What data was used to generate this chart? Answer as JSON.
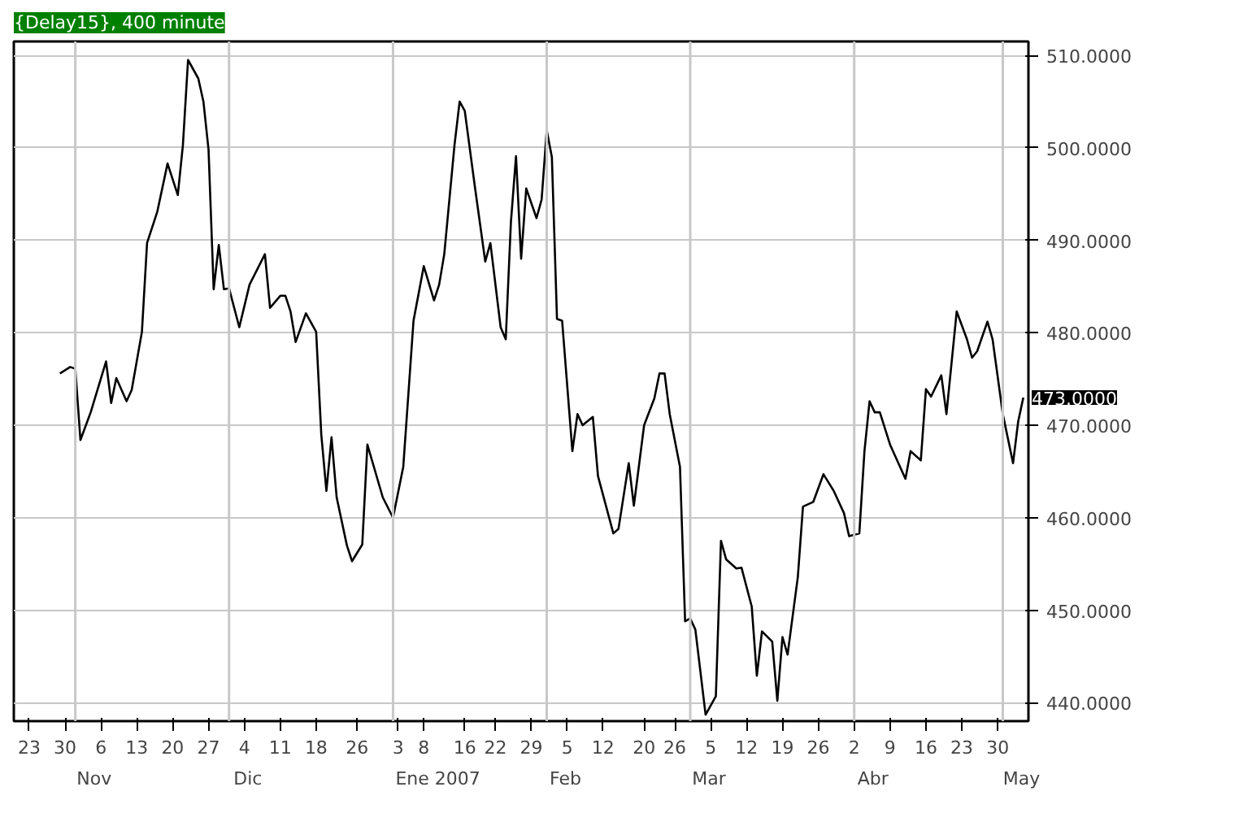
{
  "chart_data": {
    "type": "line",
    "title": "{Delay15}, 400 minute",
    "x": [
      "2006-10-29",
      "2006-10-31",
      "2006-11-01",
      "2006-11-02",
      "2006-11-04",
      "2006-11-07",
      "2006-11-08",
      "2006-11-09",
      "2006-11-11",
      "2006-11-12",
      "2006-11-14",
      "2006-11-15",
      "2006-11-17",
      "2006-11-19",
      "2006-11-21",
      "2006-11-22",
      "2006-11-23",
      "2006-11-25",
      "2006-11-26",
      "2006-11-27",
      "2006-11-28",
      "2006-11-29",
      "2006-11-30",
      "2006-12-01",
      "2006-12-03",
      "2006-12-05",
      "2006-12-08",
      "2006-12-09",
      "2006-12-11",
      "2006-12-12",
      "2006-12-13",
      "2006-12-14",
      "2006-12-16",
      "2006-12-18",
      "2006-12-19",
      "2006-12-20",
      "2006-12-21",
      "2006-12-22",
      "2006-12-24",
      "2006-12-25",
      "2006-12-27",
      "2006-12-28",
      "2006-12-31",
      "2007-01-02",
      "2007-01-04",
      "2007-01-06",
      "2007-01-08",
      "2007-01-10",
      "2007-01-11",
      "2007-01-12",
      "2007-01-14",
      "2007-01-15",
      "2007-01-16",
      "2007-01-18",
      "2007-01-20",
      "2007-01-21",
      "2007-01-23",
      "2007-01-24",
      "2007-01-25",
      "2007-01-26",
      "2007-01-27",
      "2007-01-28",
      "2007-01-30",
      "2007-01-31",
      "2007-02-01",
      "2007-02-02",
      "2007-02-03",
      "2007-02-04",
      "2007-02-06",
      "2007-02-07",
      "2007-02-08",
      "2007-02-10",
      "2007-02-11",
      "2007-02-14",
      "2007-02-15",
      "2007-02-17",
      "2007-02-18",
      "2007-02-20",
      "2007-02-22",
      "2007-02-23",
      "2007-02-24",
      "2007-02-25",
      "2007-02-27",
      "2007-02-28",
      "2007-03-01",
      "2007-03-02",
      "2007-03-04",
      "2007-03-06",
      "2007-03-07",
      "2007-03-08",
      "2007-03-10",
      "2007-03-11",
      "2007-03-13",
      "2007-03-14",
      "2007-03-15",
      "2007-03-17",
      "2007-03-18",
      "2007-03-19",
      "2007-03-20",
      "2007-03-22",
      "2007-03-23",
      "2007-03-25",
      "2007-03-27",
      "2007-03-29",
      "2007-03-31",
      "2007-04-01",
      "2007-04-03",
      "2007-04-04",
      "2007-04-05",
      "2007-04-06",
      "2007-04-07",
      "2007-04-09",
      "2007-04-12",
      "2007-04-13",
      "2007-04-15",
      "2007-04-16",
      "2007-04-17",
      "2007-04-19",
      "2007-04-20",
      "2007-04-22",
      "2007-04-24",
      "2007-04-25",
      "2007-04-26",
      "2007-04-28",
      "2007-04-29",
      "2007-05-01",
      "2007-05-03",
      "2007-05-04",
      "2007-05-05"
    ],
    "series": [
      {
        "color": "#000000",
        "values": [
          475.6,
          476.3,
          476.1,
          468.4,
          471.4,
          476.9,
          472.4,
          475.1,
          472.6,
          473.8,
          480.1,
          489.7,
          493.1,
          498.3,
          494.9,
          500.3,
          509.5,
          507.5,
          505,
          499.8,
          484.7,
          489.5,
          484.7,
          484.8,
          480.6,
          485.2,
          488.5,
          482.7,
          484,
          484,
          482.3,
          479,
          482.1,
          480.1,
          469,
          462.9,
          468.7,
          462.2,
          457,
          455.3,
          457.1,
          467.9,
          462.2,
          460,
          465.5,
          481.3,
          487.2,
          483.5,
          485.2,
          488.5,
          500.3,
          505,
          504,
          495.7,
          487.7,
          489.7,
          480.6,
          479.3,
          491.9,
          499.1,
          488,
          495.6,
          492.4,
          494.4,
          501.9,
          499,
          481.5,
          481.3,
          467.2,
          471.2,
          470,
          470.9,
          464.5,
          458.3,
          458.8,
          465.9,
          461.3,
          470,
          472.9,
          475.6,
          475.6,
          471.2,
          465.5,
          448.8,
          449.1,
          447.9,
          438.7,
          440.7,
          457.5,
          455.5,
          454.5,
          454.6,
          450.4,
          442.9,
          447.7,
          446.6,
          440.2,
          447.1,
          445.2,
          453.6,
          461.2,
          461.7,
          464.7,
          462.9,
          460.5,
          458,
          458.3,
          467.2,
          472.6,
          471.4,
          471.4,
          467.9,
          464.2,
          467.2,
          466.2,
          473.9,
          473.1,
          475.4,
          471.2,
          482.3,
          479.3,
          477.3,
          478,
          481.2,
          479.3,
          471.2,
          465.9,
          470.4,
          473
        ]
      }
    ],
    "xlim": [
      "2006-10-20",
      "2007-05-06"
    ],
    "xticks": [
      {
        "value": "2006-10-23",
        "label": "23"
      },
      {
        "value": "2006-10-30",
        "label": "30"
      },
      {
        "value": "2006-11-06",
        "label": "6"
      },
      {
        "value": "2006-11-13",
        "label": "13"
      },
      {
        "value": "2006-11-20",
        "label": "20"
      },
      {
        "value": "2006-11-27",
        "label": "27"
      },
      {
        "value": "2006-12-04",
        "label": "4"
      },
      {
        "value": "2006-12-11",
        "label": "11"
      },
      {
        "value": "2006-12-18",
        "label": "18"
      },
      {
        "value": "2006-12-26",
        "label": "26"
      },
      {
        "value": "2007-01-03",
        "label": "3"
      },
      {
        "value": "2007-01-08",
        "label": "8"
      },
      {
        "value": "2007-01-16",
        "label": "16"
      },
      {
        "value": "2007-01-22",
        "label": "22"
      },
      {
        "value": "2007-01-29",
        "label": "29"
      },
      {
        "value": "2007-02-05",
        "label": "5"
      },
      {
        "value": "2007-02-12",
        "label": "12"
      },
      {
        "value": "2007-02-20",
        "label": "20"
      },
      {
        "value": "2007-02-26",
        "label": "26"
      },
      {
        "value": "2007-03-05",
        "label": "5"
      },
      {
        "value": "2007-03-12",
        "label": "12"
      },
      {
        "value": "2007-03-19",
        "label": "19"
      },
      {
        "value": "2007-03-26",
        "label": "26"
      },
      {
        "value": "2007-04-02",
        "label": "2"
      },
      {
        "value": "2007-04-09",
        "label": "9"
      },
      {
        "value": "2007-04-16",
        "label": "16"
      },
      {
        "value": "2007-04-23",
        "label": "23"
      },
      {
        "value": "2007-04-30",
        "label": "30"
      }
    ],
    "ylim": [
      438,
      511.5
    ],
    "yticks": [
      {
        "value": 440,
        "label": "440.0000"
      },
      {
        "value": 450,
        "label": "450.0000"
      },
      {
        "value": 460,
        "label": "460.0000"
      },
      {
        "value": 470,
        "label": "470.0000"
      },
      {
        "value": 480,
        "label": "480.0000"
      },
      {
        "value": 490,
        "label": "490.0000"
      },
      {
        "value": 500,
        "label": "500.0000"
      },
      {
        "value": 510,
        "label": "510.0000"
      }
    ],
    "ref_lines": [
      {
        "axis": "x",
        "value": "2006-11-01",
        "label": "Nov",
        "color": "#c8c8c8"
      },
      {
        "axis": "x",
        "value": "2006-12-01",
        "label": "Dic",
        "color": "#c8c8c8"
      },
      {
        "axis": "x",
        "value": "2007-01-02",
        "label": "Ene 2007",
        "color": "#c8c8c8"
      },
      {
        "axis": "x",
        "value": "2007-02-01",
        "label": "Feb",
        "color": "#c8c8c8"
      },
      {
        "axis": "x",
        "value": "2007-03-01",
        "label": "Mar",
        "color": "#c8c8c8"
      },
      {
        "axis": "x",
        "value": "2007-04-02",
        "label": "Abr",
        "color": "#c8c8c8"
      },
      {
        "axis": "x",
        "value": "2007-05-01",
        "label": "May",
        "color": "#c8c8c8"
      }
    ],
    "annotations": [
      "473.0000"
    ],
    "grid": "y"
  }
}
